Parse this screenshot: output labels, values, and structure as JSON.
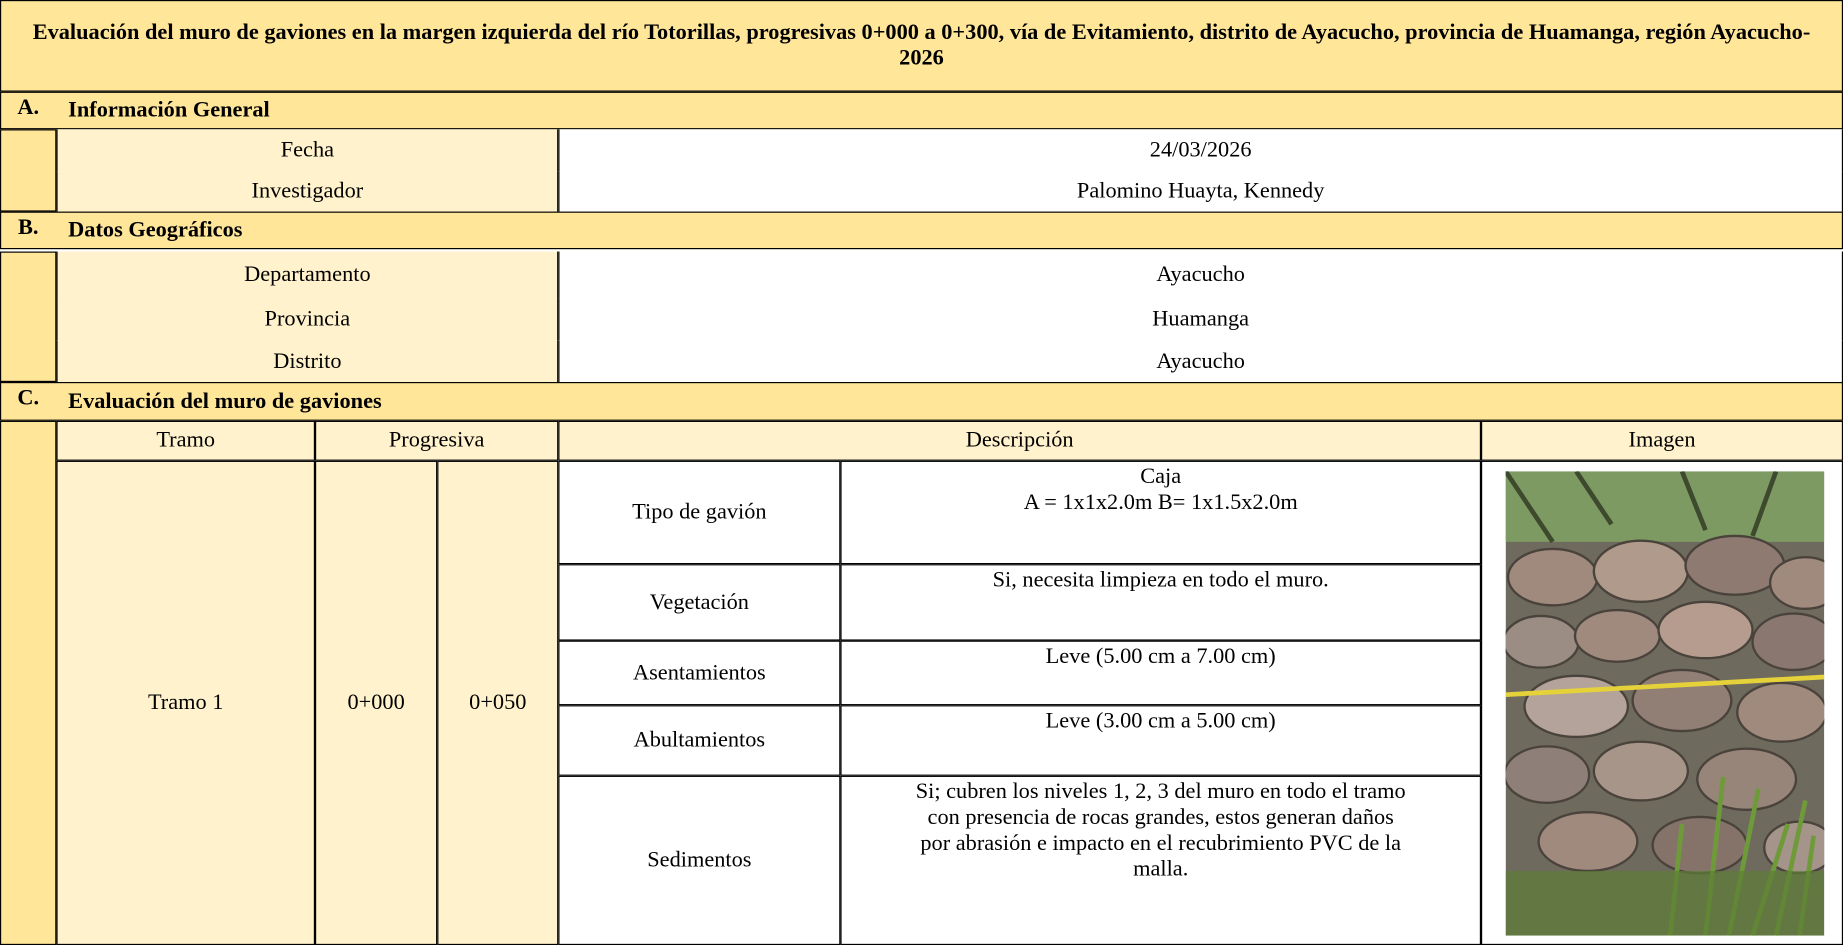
{
  "title": "Evaluación del muro de gaviones en la margen izquierda del río Totorillas, progresivas 0+000 a 0+300, vía de Evitamiento, distrito de Ayacucho, provincia de Huamanga, región Ayacucho-2026",
  "sections": [
    {
      "letter": "A.",
      "title": "Información General",
      "rows": [
        [
          "Fecha",
          "24/03/2026"
        ],
        [
          "Investigador",
          "Palomino Huayta, Kennedy"
        ]
      ]
    },
    {
      "letter": "B.",
      "title": "Datos Geográficos",
      "rows": [
        [
          "Departamento",
          "Ayacucho"
        ],
        [
          "Provincia",
          "Huamanga"
        ],
        [
          "Distrito",
          "Ayacucho"
        ]
      ]
    },
    {
      "letter": "C.",
      "title": "Evaluación del muro de gaviones",
      "headers": [
        "Tramo",
        "Progresiva",
        "Descripción",
        "Imagen"
      ],
      "tramos": [
        {
          "tramo": "Tramo 1",
          "progresiva": [
            "0+000",
            "0+050"
          ],
          "items": [
            {
              "label": "Tipo de gavión",
              "description": [
                "Caja",
                "A = 1x1x2.0m B= 1x1.5x2.0m"
              ]
            },
            {
              "label": "Vegetación",
              "description": [
                "Si, necesita limpieza en todo el muro."
              ]
            },
            {
              "label": "Asentamientos",
              "description": [
                "Leve (5.00 cm a 7.00 cm)"
              ]
            },
            {
              "label": "Abultamientos",
              "description": [
                "Leve (3.00 cm a 5.00 cm)"
              ]
            },
            {
              "label": "Sedimentos",
              "description": [
                "Si; cubren los niveles 1, 2, 3 del muro en todo el tramo con presencia de rocas grandes, estos generan daños por abrasión e impacto en el recubrimiento PVC de la malla."
              ]
            }
          ]
        }
      ]
    }
  ]
}
